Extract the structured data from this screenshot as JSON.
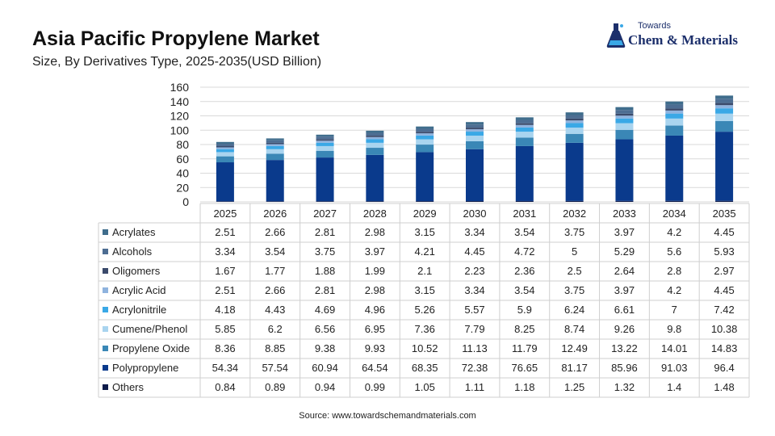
{
  "header": {
    "title": "Asia Pacific Propylene Market",
    "subtitle": "Size, By Derivatives Type, 2025-2035(USD Billion)"
  },
  "logo": {
    "top_text": "Towards",
    "main_text": "Chem & Materials",
    "icon": "flask-icon"
  },
  "source": "Source: www.towardschemandmaterials.com",
  "chart_data": {
    "type": "bar",
    "stacked": true,
    "categories": [
      "2025",
      "2026",
      "2027",
      "2028",
      "2029",
      "2030",
      "2031",
      "2032",
      "2033",
      "2034",
      "2035"
    ],
    "ylim": [
      0,
      160
    ],
    "yticks": [
      0,
      20,
      40,
      60,
      80,
      100,
      120,
      140,
      160
    ],
    "grid": true,
    "legend": "table-below",
    "series": [
      {
        "name": "Others",
        "color": "#0d1b4a",
        "values": [
          0.84,
          0.89,
          0.94,
          0.99,
          1.05,
          1.11,
          1.18,
          1.25,
          1.32,
          1.4,
          1.48
        ]
      },
      {
        "name": "Polypropylene",
        "color": "#0a3a8c",
        "values": [
          54.34,
          57.54,
          60.94,
          64.54,
          68.35,
          72.38,
          76.65,
          81.17,
          85.96,
          91.03,
          96.4
        ]
      },
      {
        "name": "Propylene Oxide",
        "color": "#3a87b6",
        "values": [
          8.36,
          8.85,
          9.38,
          9.93,
          10.52,
          11.13,
          11.79,
          12.49,
          13.22,
          14.01,
          14.83
        ]
      },
      {
        "name": "Cumene/Phenol",
        "color": "#a9d4ef",
        "values": [
          5.85,
          6.2,
          6.56,
          6.95,
          7.36,
          7.79,
          8.25,
          8.74,
          9.26,
          9.8,
          10.38
        ]
      },
      {
        "name": "Acrylonitrile",
        "color": "#3aa8e6",
        "values": [
          4.18,
          4.43,
          4.69,
          4.96,
          5.26,
          5.57,
          5.9,
          6.24,
          6.61,
          7,
          7.42
        ]
      },
      {
        "name": "Acrylic Acid",
        "color": "#8fb3de",
        "values": [
          2.51,
          2.66,
          2.81,
          2.98,
          3.15,
          3.34,
          3.54,
          3.75,
          3.97,
          4.2,
          4.45
        ]
      },
      {
        "name": "Oligomers",
        "color": "#3b4a6b",
        "values": [
          1.67,
          1.77,
          1.88,
          1.99,
          2.1,
          2.23,
          2.36,
          2.5,
          2.64,
          2.8,
          2.97
        ]
      },
      {
        "name": "Alcohols",
        "color": "#4d6d92",
        "values": [
          3.34,
          3.54,
          3.75,
          3.97,
          4.21,
          4.45,
          4.72,
          5,
          5.29,
          5.6,
          5.93
        ]
      },
      {
        "name": "Acrylates",
        "color": "#3f6d8c",
        "values": [
          2.51,
          2.66,
          2.81,
          2.98,
          3.15,
          3.34,
          3.54,
          3.75,
          3.97,
          4.2,
          4.45
        ]
      }
    ],
    "table_rows": [
      {
        "name": "Acrylates",
        "color": "#3f6d8c",
        "values": [
          "2.51",
          "2.66",
          "2.81",
          "2.98",
          "3.15",
          "3.34",
          "3.54",
          "3.75",
          "3.97",
          "4.2",
          "4.45"
        ]
      },
      {
        "name": "Alcohols",
        "color": "#4d6d92",
        "values": [
          "3.34",
          "3.54",
          "3.75",
          "3.97",
          "4.21",
          "4.45",
          "4.72",
          "5",
          "5.29",
          "5.6",
          "5.93"
        ]
      },
      {
        "name": "Oligomers",
        "color": "#3b4a6b",
        "values": [
          "1.67",
          "1.77",
          "1.88",
          "1.99",
          "2.1",
          "2.23",
          "2.36",
          "2.5",
          "2.64",
          "2.8",
          "2.97"
        ]
      },
      {
        "name": "Acrylic Acid",
        "color": "#8fb3de",
        "values": [
          "2.51",
          "2.66",
          "2.81",
          "2.98",
          "3.15",
          "3.34",
          "3.54",
          "3.75",
          "3.97",
          "4.2",
          "4.45"
        ]
      },
      {
        "name": "Acrylonitrile",
        "color": "#3aa8e6",
        "values": [
          "4.18",
          "4.43",
          "4.69",
          "4.96",
          "5.26",
          "5.57",
          "5.9",
          "6.24",
          "6.61",
          "7",
          "7.42"
        ]
      },
      {
        "name": "Cumene/Phenol",
        "color": "#a9d4ef",
        "values": [
          "5.85",
          "6.2",
          "6.56",
          "6.95",
          "7.36",
          "7.79",
          "8.25",
          "8.74",
          "9.26",
          "9.8",
          "10.38"
        ]
      },
      {
        "name": "Propylene Oxide",
        "color": "#3a87b6",
        "values": [
          "8.36",
          "8.85",
          "9.38",
          "9.93",
          "10.52",
          "11.13",
          "11.79",
          "12.49",
          "13.22",
          "14.01",
          "14.83"
        ]
      },
      {
        "name": "Polypropylene",
        "color": "#0a3a8c",
        "values": [
          "54.34",
          "57.54",
          "60.94",
          "64.54",
          "68.35",
          "72.38",
          "76.65",
          "81.17",
          "85.96",
          "91.03",
          "96.4"
        ]
      },
      {
        "name": "Others",
        "color": "#0d1b4a",
        "values": [
          "0.84",
          "0.89",
          "0.94",
          "0.99",
          "1.05",
          "1.11",
          "1.18",
          "1.25",
          "1.32",
          "1.4",
          "1.48"
        ]
      }
    ]
  }
}
